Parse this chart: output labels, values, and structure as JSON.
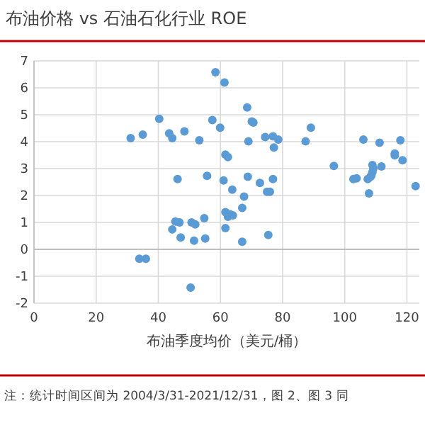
{
  "chart_data": {
    "type": "scatter",
    "title": "布油价格 vs 石油石化行业 ROE",
    "xlabel": "布油季度均价（美元/桶）",
    "annotations": [
      "注：统计时间区间为 2004/3/31-2021/12/31，图 2、图 3 同"
    ],
    "xlim": [
      0,
      124
    ],
    "xticks": [
      0,
      20,
      40,
      60,
      80,
      100,
      120
    ],
    "ylim": [
      -2,
      7
    ],
    "yticks": [
      -2,
      -1,
      0,
      1,
      2,
      3,
      4,
      5,
      6,
      7
    ],
    "grid": true,
    "marker": "circle",
    "series": [
      {
        "color": "#5b9bd5",
        "x": [
          58.4,
          61.3,
          40.3,
          57.4,
          68.6,
          70.1,
          70.6,
          31.1,
          35.0,
          43.5,
          44.5,
          48.4,
          53.2,
          59.9,
          69.0,
          74.4,
          76.9,
          78.6,
          77.2,
          87.4,
          89.1,
          106.0,
          111.2,
          117.9,
          116.1,
          61.6,
          62.4,
          46.2,
          55.7,
          61.0,
          63.8,
          68.8,
          72.7,
          76.9,
          75.0,
          75.9,
          67.6,
          96.5,
          102.8,
          103.8,
          107.4,
          108.3,
          108.9,
          109.2,
          108.9,
          108.6,
          111.8,
          107.8,
          116.1,
          118.6,
          122.8,
          45.5,
          46.8,
          44.5,
          47.2,
          50.7,
          51.9,
          51.5,
          54.8,
          55.1,
          61.6,
          62.4,
          63.1,
          64.0,
          67.0,
          61.6,
          67.0,
          75.4,
          33.9,
          36.0,
          50.4
        ],
        "values": [
          6.58,
          6.2,
          4.85,
          4.8,
          5.27,
          4.75,
          4.71,
          4.13,
          4.26,
          4.31,
          4.13,
          4.38,
          4.05,
          4.52,
          4.01,
          4.17,
          4.2,
          4.08,
          3.78,
          4.01,
          4.52,
          4.08,
          3.96,
          4.05,
          3.56,
          3.52,
          3.43,
          2.61,
          2.73,
          2.56,
          2.22,
          2.7,
          2.47,
          2.61,
          2.14,
          2.14,
          1.96,
          3.1,
          2.61,
          2.64,
          2.61,
          2.7,
          3.13,
          3.0,
          2.87,
          2.75,
          3.08,
          2.08,
          3.49,
          3.31,
          2.35,
          1.03,
          1.0,
          0.74,
          0.44,
          1.0,
          0.93,
          0.32,
          1.16,
          0.4,
          1.38,
          1.21,
          1.3,
          1.26,
          1.54,
          0.79,
          0.28,
          0.53,
          -0.35,
          -0.35,
          -1.42
        ]
      }
    ]
  }
}
